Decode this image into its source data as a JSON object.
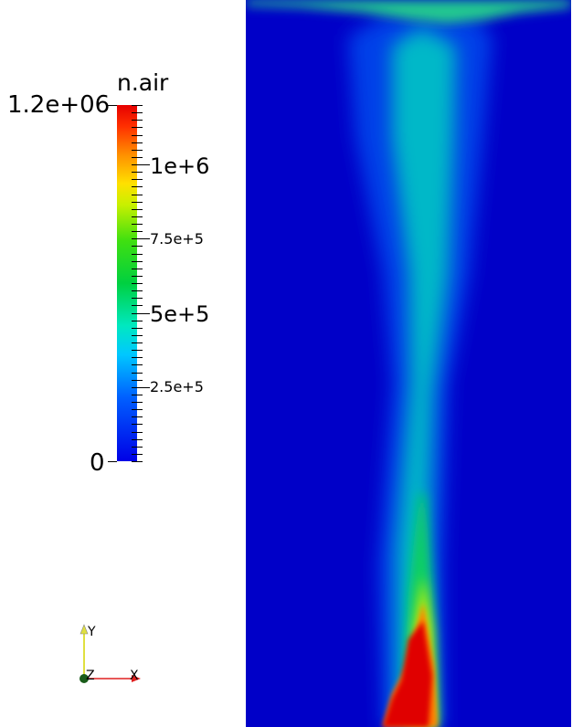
{
  "legend": {
    "title": "n.air",
    "max_label": "1.2e+06",
    "min_label": "0",
    "labels": [
      {
        "text": "1e+6",
        "value": 1000000
      },
      {
        "text": "7.5e+5",
        "value": 750000
      },
      {
        "text": "5e+5",
        "value": 500000
      },
      {
        "text": "2.5e+5",
        "value": 250000
      }
    ],
    "range": [
      0,
      1200000
    ],
    "colormap": "rainbow (blue to red)"
  },
  "axes": {
    "x_label": "X",
    "y_label": "Y",
    "z_label": "Z",
    "x_color": "#e02020",
    "y_color": "#e0e040",
    "z_color": "#1a5c1a"
  },
  "field": {
    "background_color": "#0000c8",
    "plume_colors": [
      "#00c8b0",
      "#10d060",
      "#d0f000",
      "#ff8000",
      "#e00000"
    ]
  }
}
